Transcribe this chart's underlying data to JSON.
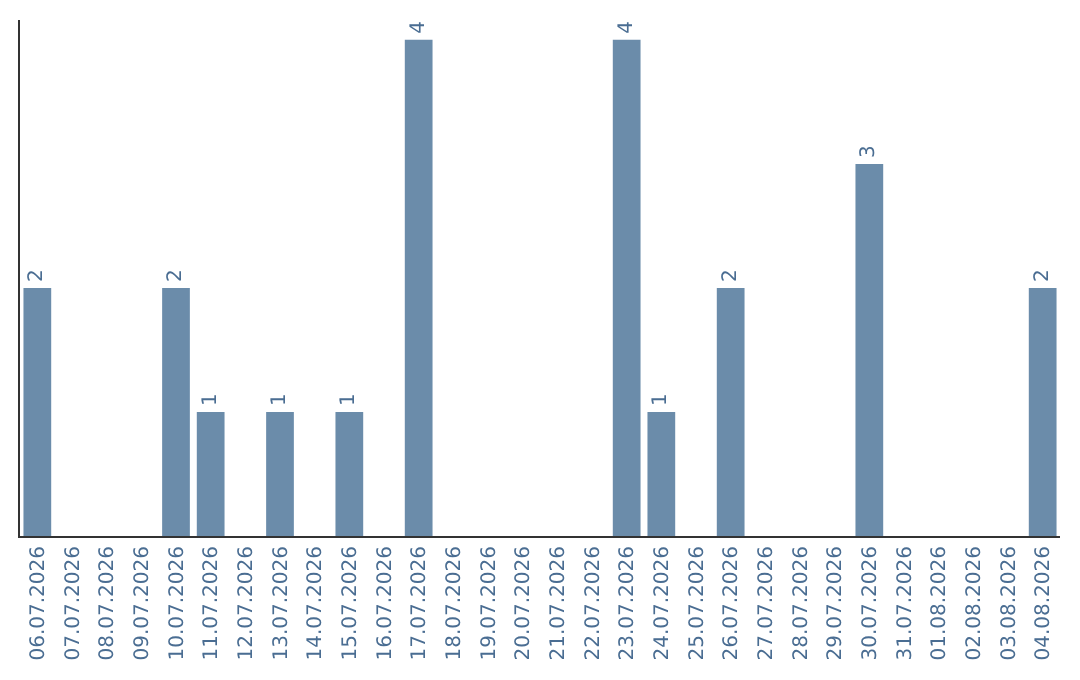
{
  "chart_data": {
    "type": "bar",
    "categories": [
      "06.07.2026",
      "07.07.2026",
      "08.07.2026",
      "09.07.2026",
      "10.07.2026",
      "11.07.2026",
      "12.07.2026",
      "13.07.2026",
      "14.07.2026",
      "15.07.2026",
      "16.07.2026",
      "17.07.2026",
      "18.07.2026",
      "19.07.2026",
      "20.07.2026",
      "21.07.2026",
      "22.07.2026",
      "23.07.2026",
      "24.07.2026",
      "25.07.2026",
      "26.07.2026",
      "27.07.2026",
      "28.07.2026",
      "29.07.2026",
      "30.07.2026",
      "31.07.2026",
      "01.08.2026",
      "02.08.2026",
      "03.08.2026",
      "04.08.2026"
    ],
    "values": [
      2,
      0,
      0,
      0,
      2,
      1,
      0,
      1,
      0,
      1,
      0,
      4,
      0,
      0,
      0,
      0,
      0,
      4,
      1,
      0,
      2,
      0,
      0,
      0,
      3,
      0,
      0,
      0,
      0,
      2
    ],
    "value_labels": [
      "2",
      null,
      null,
      null,
      "2",
      "1",
      null,
      "1",
      null,
      "1",
      null,
      "4",
      null,
      null,
      null,
      null,
      null,
      "4",
      "1",
      null,
      "2",
      null,
      null,
      null,
      "3",
      null,
      null,
      null,
      null,
      "2"
    ],
    "color": "#6b8caa",
    "legend": false
  }
}
